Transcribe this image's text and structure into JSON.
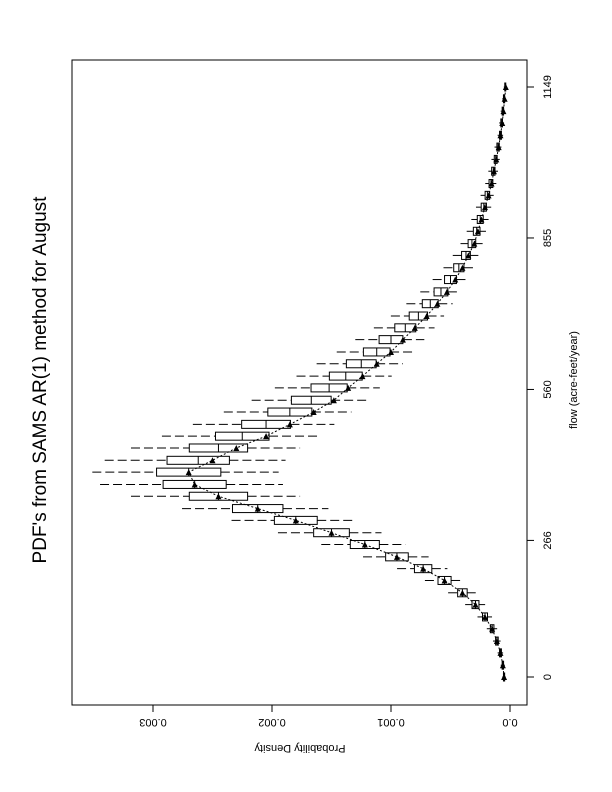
{
  "chart_data": {
    "type": "boxplot",
    "orientation": "rotated 90 degrees counter-clockwise (page in landscape)",
    "title": "PDF's from SAMS AR(1) method for August",
    "xlabel": "flow (acre-feet/year)",
    "ylabel": "Probability Density",
    "xlim": [
      0,
      1149
    ],
    "ylim": [
      0,
      0.0035
    ],
    "x_ticks": [
      "0",
      "266",
      "560",
      "855",
      "1149"
    ],
    "x_tick_values": [
      0,
      266,
      560,
      855,
      1149
    ],
    "y_ticks": [
      "0.0",
      "0.001",
      "0.002",
      "0.003"
    ],
    "y_tick_values": [
      0,
      0.001,
      0.002,
      0.003
    ],
    "grid": false,
    "colors": {
      "ink": "#000000",
      "background": "#ffffff"
    },
    "flow": [
      0,
      23,
      47,
      70,
      94,
      117,
      141,
      164,
      188,
      211,
      234,
      258,
      281,
      305,
      328,
      352,
      375,
      399,
      422,
      446,
      469,
      492,
      516,
      539,
      563,
      586,
      610,
      633,
      657,
      680,
      703,
      727,
      750,
      774,
      797,
      821,
      844,
      868,
      891,
      915,
      938,
      961,
      985,
      1008,
      1032,
      1055,
      1079,
      1102,
      1126,
      1149
    ],
    "historical": [
      5e-05,
      6e-05,
      8e-05,
      0.00011,
      0.00015,
      0.00021,
      0.00029,
      0.0004,
      0.00055,
      0.00073,
      0.00095,
      0.00122,
      0.0015,
      0.0018,
      0.00212,
      0.00245,
      0.00265,
      0.0027,
      0.0025,
      0.0023,
      0.00205,
      0.00185,
      0.00165,
      0.00148,
      0.00136,
      0.00124,
      0.00112,
      0.001,
      0.0009,
      0.0008,
      0.0007,
      0.00061,
      0.00053,
      0.00046,
      0.0004,
      0.00035,
      0.0003,
      0.00027,
      0.00024,
      0.00021,
      0.00018,
      0.000155,
      0.000135,
      0.000115,
      9.5e-05,
      8e-05,
      6.5e-05,
      5.5e-05,
      4.5e-05,
      3.5e-05
    ],
    "whisker_low": [
      3.6e-05,
      4.3e-05,
      5.8e-05,
      7.9e-05,
      0.000108,
      0.000151,
      0.000209,
      0.000288,
      0.000396,
      0.000526,
      0.000684,
      0.000878,
      0.00108,
      0.001296,
      0.001526,
      0.001764,
      0.001908,
      0.001944,
      0.001886,
      0.001764,
      0.00162,
      0.001476,
      0.001332,
      0.001202,
      0.001094,
      0.000994,
      0.0009,
      0.000806,
      0.00072,
      0.000634,
      0.000554,
      0.000482,
      0.000418,
      0.00036,
      0.00031,
      0.000266,
      0.00023,
      0.000202,
      0.00018,
      0.000158,
      0.000137,
      0.000115,
      0.000101,
      8.6e-05,
      7.2e-05,
      5.8e-05,
      5e-05,
      4.3e-05,
      3.6e-05,
      2.9e-05
    ],
    "q1": [
      4.5e-05,
      5.4e-05,
      7.2e-05,
      9.9e-05,
      0.000135,
      0.000189,
      0.000261,
      0.00036,
      0.000495,
      0.000657,
      0.000855,
      0.001098,
      0.00135,
      0.00162,
      0.001908,
      0.002205,
      0.002385,
      0.00243,
      0.002358,
      0.002205,
      0.002025,
      0.001845,
      0.001665,
      0.001503,
      0.001368,
      0.001242,
      0.001125,
      0.001008,
      0.0009,
      0.000792,
      0.000693,
      0.000603,
      0.000522,
      0.00045,
      0.000387,
      0.000333,
      0.000288,
      0.000252,
      0.000225,
      0.000198,
      0.000171,
      0.000144,
      0.000126,
      0.000108,
      9e-05,
      7.2e-05,
      6.3e-05,
      5.4e-05,
      4.5e-05,
      3.6e-05
    ],
    "median": [
      5e-05,
      6e-05,
      8e-05,
      0.00011,
      0.00015,
      0.00021,
      0.00029,
      0.0004,
      0.00055,
      0.00073,
      0.00095,
      0.00122,
      0.0015,
      0.0018,
      0.00212,
      0.00245,
      0.00265,
      0.0027,
      0.00262,
      0.00245,
      0.00225,
      0.00205,
      0.00185,
      0.00167,
      0.00152,
      0.00138,
      0.00125,
      0.00112,
      0.001,
      0.00088,
      0.00077,
      0.00067,
      0.00058,
      0.0005,
      0.00043,
      0.00037,
      0.00032,
      0.00028,
      0.00025,
      0.00022,
      0.00019,
      0.00016,
      0.00014,
      0.00012,
      0.0001,
      8e-05,
      7e-05,
      6e-05,
      5e-05,
      4e-05
    ],
    "q3": [
      5.5e-05,
      6.6e-05,
      8.8e-05,
      0.000121,
      0.000165,
      0.000231,
      0.000319,
      0.00044,
      0.000605,
      0.000803,
      0.001045,
      0.001342,
      0.00165,
      0.00198,
      0.002332,
      0.002695,
      0.002915,
      0.00297,
      0.002882,
      0.002695,
      0.002475,
      0.002255,
      0.002035,
      0.001837,
      0.001672,
      0.001518,
      0.001375,
      0.001232,
      0.0011,
      0.000968,
      0.000847,
      0.000737,
      0.000638,
      0.00055,
      0.000473,
      0.000407,
      0.000352,
      0.000308,
      0.000275,
      0.000242,
      0.000209,
      0.000176,
      0.000154,
      0.000132,
      0.00011,
      8.8e-05,
      7.7e-05,
      6.6e-05,
      5.5e-05,
      4.4e-05
    ],
    "whisker_high": [
      6.5e-05,
      7.8e-05,
      0.000104,
      0.000143,
      0.000195,
      0.000273,
      0.000377,
      0.00052,
      0.000715,
      0.000949,
      0.001235,
      0.001586,
      0.00195,
      0.00234,
      0.002756,
      0.003185,
      0.003445,
      0.00351,
      0.003406,
      0.003185,
      0.002925,
      0.002665,
      0.002405,
      0.002171,
      0.001976,
      0.001794,
      0.001625,
      0.001456,
      0.0013,
      0.001144,
      0.001001,
      0.000871,
      0.000754,
      0.00065,
      0.000559,
      0.000481,
      0.000416,
      0.000364,
      0.000325,
      0.000286,
      0.000247,
      0.000208,
      0.000182,
      0.000156,
      0.00013,
      0.000104,
      9.1e-05,
      7.8e-05,
      6.5e-05,
      5.2e-05
    ]
  }
}
